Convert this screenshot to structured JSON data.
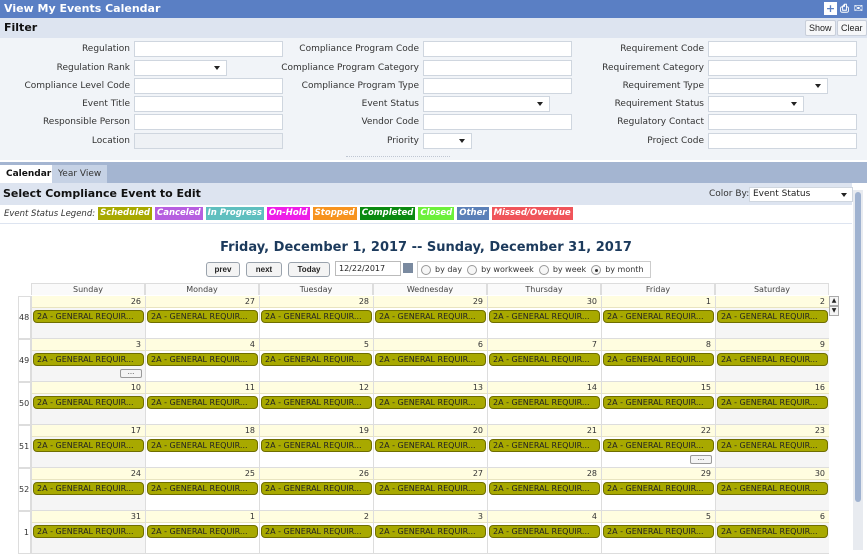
{
  "window": {
    "title": "View My Events Calendar",
    "icons": [
      "add-icon",
      "print-icon",
      "email-icon"
    ]
  },
  "filter": {
    "title": "Filter",
    "show_label": "Show",
    "clear_label": "Clear",
    "col1": [
      {
        "label": "Regulation",
        "type": "text",
        "value": ""
      },
      {
        "label": "Regulation Rank",
        "type": "select",
        "value": ""
      },
      {
        "label": "Compliance Level Code",
        "type": "text",
        "value": ""
      },
      {
        "label": "Event Title",
        "type": "text",
        "value": ""
      },
      {
        "label": "Responsible Person",
        "type": "text",
        "value": ""
      },
      {
        "label": "Location",
        "type": "disabled",
        "value": ""
      }
    ],
    "col2": [
      {
        "label": "Compliance Program Code",
        "type": "text",
        "value": ""
      },
      {
        "label": "Compliance Program Category",
        "type": "text",
        "value": ""
      },
      {
        "label": "Compliance Program Type",
        "type": "text",
        "value": ""
      },
      {
        "label": "Event Status",
        "type": "select",
        "value": ""
      },
      {
        "label": "Vendor Code",
        "type": "text",
        "value": ""
      },
      {
        "label": "Priority",
        "type": "select",
        "value": ""
      }
    ],
    "col3": [
      {
        "label": "Requirement Code",
        "type": "text",
        "value": ""
      },
      {
        "label": "Requirement Category",
        "type": "text",
        "value": ""
      },
      {
        "label": "Requirement Type",
        "type": "select",
        "value": ""
      },
      {
        "label": "Requirement Status",
        "type": "select",
        "value": ""
      },
      {
        "label": "Regulatory Contact",
        "type": "text",
        "value": ""
      },
      {
        "label": "Project Code",
        "type": "text",
        "value": ""
      }
    ]
  },
  "tabs": [
    {
      "label": "Calendar",
      "active": true
    },
    {
      "label": "Year View",
      "active": false
    }
  ],
  "section": {
    "title": "Select Compliance Event to Edit",
    "color_by_label": "Color By:",
    "color_by_value": "Event Status"
  },
  "legend": {
    "label": "Event Status Legend:",
    "items": [
      {
        "label": "Scheduled",
        "color": "#a8a900"
      },
      {
        "label": "Canceled",
        "color": "#b65ee0"
      },
      {
        "label": "In Progress",
        "color": "#5fbfbf"
      },
      {
        "label": "On-Hold",
        "color": "#ee1ee8"
      },
      {
        "label": "Stopped",
        "color": "#f7931e"
      },
      {
        "label": "Completed",
        "color": "#0a8a10"
      },
      {
        "label": "Closed",
        "color": "#6cf03a"
      },
      {
        "label": "Other",
        "color": "#5b80b8"
      },
      {
        "label": "Missed/Overdue",
        "color": "#f0545a"
      }
    ]
  },
  "calendar": {
    "range_title": "Friday, December 1, 2017 -- Sunday, December 31, 2017",
    "prev_label": "prev",
    "next_label": "next",
    "today_label": "Today",
    "date_value": "12/22/2017",
    "views": [
      {
        "label": "by day",
        "selected": false
      },
      {
        "label": "by workweek",
        "selected": false
      },
      {
        "label": "by week",
        "selected": false
      },
      {
        "label": "by month",
        "selected": true
      }
    ],
    "day_headers": [
      "Sunday",
      "Monday",
      "Tuesday",
      "Wednesday",
      "Thursday",
      "Friday",
      "Saturday"
    ],
    "event_label": "2A  - GENERAL REQUIR...",
    "more_label": "...",
    "weeks": [
      {
        "num": "48",
        "days": [
          "26",
          "27",
          "28",
          "29",
          "30",
          "1",
          "2"
        ],
        "more_day": null
      },
      {
        "num": "49",
        "days": [
          "3",
          "4",
          "5",
          "6",
          "7",
          "8",
          "9"
        ],
        "more_day": 0
      },
      {
        "num": "50",
        "days": [
          "10",
          "11",
          "12",
          "13",
          "14",
          "15",
          "16"
        ],
        "more_day": null
      },
      {
        "num": "51",
        "days": [
          "17",
          "18",
          "19",
          "20",
          "21",
          "22",
          "23"
        ],
        "more_day": 5
      },
      {
        "num": "52",
        "days": [
          "24",
          "25",
          "26",
          "27",
          "28",
          "29",
          "30"
        ],
        "more_day": null
      },
      {
        "num": "1",
        "days": [
          "31",
          "1",
          "2",
          "3",
          "4",
          "5",
          "6"
        ],
        "more_day": null
      }
    ]
  }
}
